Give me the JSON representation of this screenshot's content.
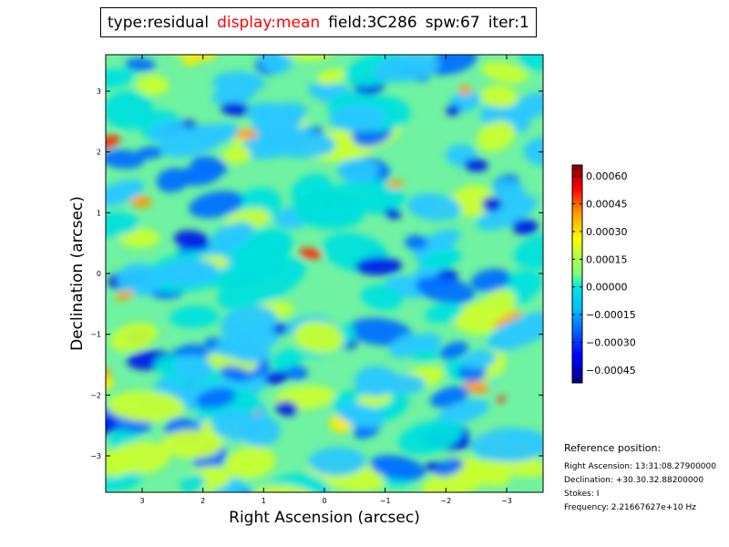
{
  "title": {
    "type": "type:residual",
    "display": "display:mean",
    "field": "field:3C286",
    "spw": "spw:67",
    "iter": "iter:1",
    "highlight_color": "#ff0000"
  },
  "chart_data": {
    "type": "heatmap",
    "xlabel": "Right Ascension (arcsec)",
    "ylabel": "Declination (arcsec)",
    "xlim": [
      3.6,
      -3.6
    ],
    "ylim": [
      -3.6,
      3.6
    ],
    "xticks": [
      3,
      2,
      1,
      0,
      -1,
      -2,
      -3
    ],
    "xtick_labels": [
      "3",
      "2",
      "1",
      "0",
      "−1",
      "−2",
      "−3"
    ],
    "yticks": [
      3,
      2,
      1,
      0,
      -1,
      -2,
      -3
    ],
    "ytick_labels": [
      "3",
      "2",
      "1",
      "0",
      "−1",
      "−2",
      "−3"
    ],
    "colormap": "jet",
    "colorbar": {
      "vmin": -0.00052,
      "vmax": 0.00066,
      "ticks": [
        0.0006,
        0.00045,
        0.0003,
        0.00015,
        0.0,
        -0.00015,
        -0.0003,
        -0.00045
      ],
      "tick_labels": [
        "0.00060",
        "0.00045",
        "0.00030",
        "0.00015",
        "0.00000",
        "−0.00015",
        "−0.00030",
        "−0.00045"
      ]
    }
  },
  "reference": {
    "heading": "Reference position:",
    "ra": "Right Ascension: 13:31:08.27900000",
    "dec": "Declination: +30.30.32.88200000",
    "stokes": "Stokes: I",
    "frequency": "Frequency: 2.21667627e+10 Hz"
  }
}
